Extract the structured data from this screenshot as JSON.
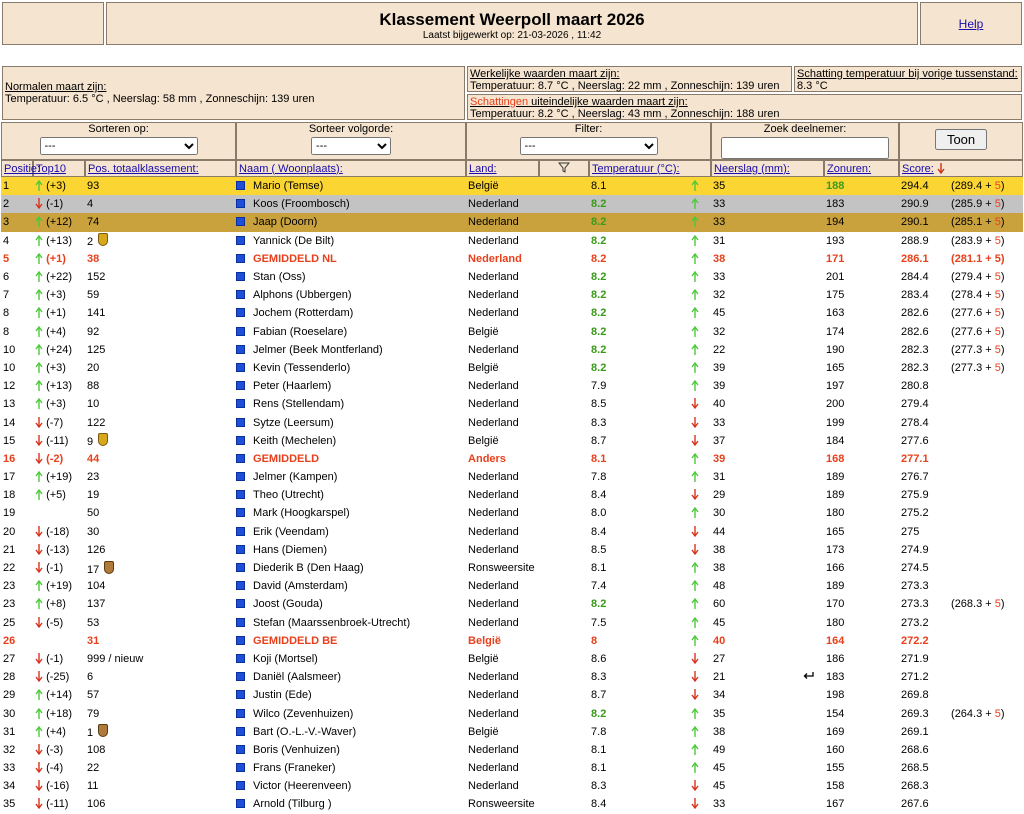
{
  "header": {
    "title": "Klassement Weerpoll maart 2026",
    "subtitle": "Laatst bijgewerkt op: 21-03-2026 , 11:42",
    "help": "Help"
  },
  "info": {
    "normals_label": "Normalen maart zijn:",
    "normals_text": "Temperatuur: 6.5 °C , Neerslag: 58 mm , Zonneschijn: 139 uren",
    "actual_label": "Werkelijke waarden maart zijn:",
    "actual_text": "Temperatuur: 8.7 °C , Neerslag: 22 mm , Zonneschijn: 139 uren",
    "prev_label": "Schatting temperatuur bij vorige tussenstand:",
    "prev_text": "8.3 °C",
    "estimates_link": "Schattingen",
    "estimates_label": " uiteindelijke waarden maart zijn:",
    "estimates_text": "Temperatuur: 8.2 °C , Neerslag: 43 mm , Zonneschijn: 188 uren"
  },
  "controls": {
    "sort_label": "Sorteren op:",
    "sort_value": "---",
    "order_label": "Sorteer volgorde:",
    "order_value": "---",
    "filter_label": "Filter:",
    "filter_value": "---",
    "search_label": "Zoek deelnemer:",
    "button": "Toon"
  },
  "columns": {
    "position": "Positie:",
    "top10": "Top10",
    "total": "Pos. totaalklassement:",
    "name": "Naam ( Woonplaats):",
    "land": "Land:",
    "temp": "Temperatuur (°C):",
    "rain": "Neerslag (mm):",
    "sun": "Zonuren:",
    "score": "Score:"
  },
  "table": {
    "rows": [
      {
        "pos": "1",
        "trend": "up",
        "change": "(+3)",
        "total": "93",
        "name": "Mario (Temse)",
        "land": "België",
        "temp": "8.1",
        "temp_dir": "up",
        "rain": "35",
        "sun": "188",
        "sun_best": true,
        "score": "294.4",
        "est": [
          "(289.4 + ",
          "5",
          ")"
        ],
        "style": "gold"
      },
      {
        "pos": "2",
        "trend": "down",
        "change": "(-1)",
        "total": "4",
        "name": "Koos (Froombosch)",
        "land": "Nederland",
        "temp": "8.2",
        "temp_best": true,
        "temp_dir": "up",
        "rain": "33",
        "sun": "183",
        "score": "290.9",
        "est": [
          "(285.9 + ",
          "5",
          ")"
        ],
        "style": "silver"
      },
      {
        "pos": "3",
        "trend": "up",
        "change": "(+12)",
        "total": "74",
        "name": "Jaap (Doorn)",
        "land": "Nederland",
        "temp": "8.2",
        "temp_best": true,
        "temp_dir": "up",
        "rain": "33",
        "sun": "194",
        "score": "290.1",
        "est": [
          "(285.1 + ",
          "5",
          ")"
        ],
        "style": "bronze"
      },
      {
        "pos": "4",
        "trend": "up",
        "change": "(+13)",
        "total": "2",
        "medal": "gold",
        "name": "Yannick (De Bilt)",
        "land": "Nederland",
        "temp": "8.2",
        "temp_best": true,
        "temp_dir": "up",
        "rain": "31",
        "sun": "193",
        "score": "288.9",
        "est": [
          "(283.9 + ",
          "5",
          ")"
        ]
      },
      {
        "pos": "5",
        "trend": "up",
        "change": "(+1)",
        "total": "38",
        "name": "GEMIDDELD NL",
        "land": "Nederland",
        "temp": "8.2",
        "temp_dir": "up",
        "rain": "38",
        "sun": "171",
        "score": "286.1",
        "est": [
          "(281.1 + ",
          "5",
          ")"
        ],
        "style": "avg"
      },
      {
        "pos": "6",
        "trend": "up",
        "change": "(+22)",
        "total": "152",
        "name": "Stan (Oss)",
        "land": "Nederland",
        "temp": "8.2",
        "temp_best": true,
        "temp_dir": "up",
        "rain": "33",
        "sun": "201",
        "score": "284.4",
        "est": [
          "(279.4 + ",
          "5",
          ")"
        ]
      },
      {
        "pos": "7",
        "trend": "up",
        "change": "(+3)",
        "total": "59",
        "name": "Alphons (Ubbergen)",
        "land": "Nederland",
        "temp": "8.2",
        "temp_best": true,
        "temp_dir": "up",
        "rain": "32",
        "sun": "175",
        "score": "283.4",
        "est": [
          "(278.4 + ",
          "5",
          ")"
        ]
      },
      {
        "pos": "8",
        "trend": "up",
        "change": "(+1)",
        "total": "141",
        "name": "Jochem (Rotterdam)",
        "land": "Nederland",
        "temp": "8.2",
        "temp_best": true,
        "temp_dir": "up",
        "rain": "45",
        "sun": "163",
        "score": "282.6",
        "est": [
          "(277.6 + ",
          "5",
          ")"
        ]
      },
      {
        "pos": "8",
        "trend": "up",
        "change": "(+4)",
        "total": "92",
        "name": "Fabian (Roeselare)",
        "land": "België",
        "temp": "8.2",
        "temp_best": true,
        "temp_dir": "up",
        "rain": "32",
        "sun": "174",
        "score": "282.6",
        "est": [
          "(277.6 + ",
          "5",
          ")"
        ]
      },
      {
        "pos": "10",
        "trend": "up",
        "change": "(+24)",
        "total": "125",
        "name": "Jelmer (Beek Montferland)",
        "land": "Nederland",
        "temp": "8.2",
        "temp_best": true,
        "temp_dir": "up",
        "rain": "22",
        "sun": "190",
        "score": "282.3",
        "est": [
          "(277.3 + ",
          "5",
          ")"
        ]
      },
      {
        "pos": "10",
        "trend": "up",
        "change": "(+3)",
        "total": "20",
        "name": "Kevin (Tessenderlo)",
        "land": "België",
        "temp": "8.2",
        "temp_best": true,
        "temp_dir": "up",
        "rain": "39",
        "sun": "165",
        "score": "282.3",
        "est": [
          "(277.3 + ",
          "5",
          ")"
        ]
      },
      {
        "pos": "12",
        "trend": "up",
        "change": "(+13)",
        "total": "88",
        "name": "Peter (Haarlem)",
        "land": "Nederland",
        "temp": "7.9",
        "temp_dir": "up",
        "rain": "39",
        "sun": "197",
        "score": "280.8"
      },
      {
        "pos": "13",
        "trend": "up",
        "change": "(+3)",
        "total": "10",
        "name": "Rens (Stellendam)",
        "land": "Nederland",
        "temp": "8.5",
        "temp_dir": "down",
        "rain": "40",
        "sun": "200",
        "score": "279.4"
      },
      {
        "pos": "14",
        "trend": "down",
        "change": "(-7)",
        "total": "122",
        "name": "Sytze (Leersum)",
        "land": "Nederland",
        "temp": "8.3",
        "temp_dir": "down",
        "rain": "33",
        "sun": "199",
        "score": "278.4"
      },
      {
        "pos": "15",
        "trend": "down",
        "change": "(-11)",
        "total": "9",
        "medal": "gold",
        "name": "Keith (Mechelen)",
        "land": "België",
        "temp": "8.7",
        "temp_dir": "down",
        "rain": "37",
        "sun": "184",
        "score": "277.6"
      },
      {
        "pos": "16",
        "trend": "down",
        "change": "(-2)",
        "total": "44",
        "name": "GEMIDDELD",
        "land": "Anders",
        "temp": "8.1",
        "temp_dir": "up",
        "rain": "39",
        "sun": "168",
        "score": "277.1",
        "style": "avg"
      },
      {
        "pos": "17",
        "trend": "up",
        "change": "(+19)",
        "total": "23",
        "name": "Jelmer (Kampen)",
        "land": "Nederland",
        "temp": "7.8",
        "temp_dir": "up",
        "rain": "31",
        "sun": "189",
        "score": "276.7"
      },
      {
        "pos": "18",
        "trend": "up",
        "change": "(+5)",
        "total": "19",
        "name": "Theo (Utrecht)",
        "land": "Nederland",
        "temp": "8.4",
        "temp_dir": "down",
        "rain": "29",
        "sun": "189",
        "score": "275.9"
      },
      {
        "pos": "19",
        "total": "50",
        "name": "Mark (Hoogkarspel)",
        "land": "Nederland",
        "temp": "8.0",
        "temp_dir": "up",
        "rain": "30",
        "sun": "180",
        "score": "275.2"
      },
      {
        "pos": "20",
        "trend": "down",
        "change": "(-18)",
        "total": "30",
        "name": "Erik (Veendam)",
        "land": "Nederland",
        "temp": "8.4",
        "temp_dir": "down",
        "rain": "44",
        "sun": "165",
        "score": "275"
      },
      {
        "pos": "21",
        "trend": "down",
        "change": "(-13)",
        "total": "126",
        "name": "Hans (Diemen)",
        "land": "Nederland",
        "temp": "8.5",
        "temp_dir": "down",
        "rain": "38",
        "sun": "173",
        "score": "274.9"
      },
      {
        "pos": "22",
        "trend": "down",
        "change": "(-1)",
        "total": "17",
        "medal": "bronze",
        "name": "Diederik B (Den Haag)",
        "land": "Ronsweersite",
        "temp": "8.1",
        "temp_dir": "up",
        "rain": "38",
        "sun": "166",
        "score": "274.5"
      },
      {
        "pos": "23",
        "trend": "up",
        "change": "(+19)",
        "total": "104",
        "name": "David (Amsterdam)",
        "land": "Nederland",
        "temp": "7.4",
        "temp_dir": "up",
        "rain": "48",
        "sun": "189",
        "score": "273.3"
      },
      {
        "pos": "23",
        "trend": "up",
        "change": "(+8)",
        "total": "137",
        "name": "Joost (Gouda)",
        "land": "Nederland",
        "temp": "8.2",
        "temp_best": true,
        "temp_dir": "up",
        "rain": "60",
        "sun": "170",
        "score": "273.3",
        "est": [
          "(268.3 + ",
          "5",
          ")"
        ]
      },
      {
        "pos": "25",
        "trend": "down",
        "change": "(-5)",
        "total": "53",
        "name": "Stefan (Maarssenbroek-Utrecht)",
        "land": "Nederland",
        "temp": "7.5",
        "temp_dir": "up",
        "rain": "45",
        "sun": "180",
        "score": "273.2"
      },
      {
        "pos": "26",
        "total": "31",
        "name": "GEMIDDELD BE",
        "land": "België",
        "temp": "8",
        "temp_dir": "up",
        "rain": "40",
        "sun": "164",
        "score": "272.2",
        "style": "avg"
      },
      {
        "pos": "27",
        "trend": "down",
        "change": "(-1)",
        "total": "999 / nieuw",
        "name": "Koji (Mortsel)",
        "land": "België",
        "temp": "8.6",
        "temp_dir": "down",
        "rain": "27",
        "sun": "186",
        "score": "271.9"
      },
      {
        "pos": "28",
        "trend": "down",
        "change": "(-25)",
        "total": "6",
        "name": "Daniël (Aalsmeer)",
        "land": "Nederland",
        "temp": "8.3",
        "temp_dir": "down",
        "rain": "21",
        "return_icon": true,
        "sun": "183",
        "score": "271.2"
      },
      {
        "pos": "29",
        "trend": "up",
        "change": "(+14)",
        "total": "57",
        "name": "Justin (Ede)",
        "land": "Nederland",
        "temp": "8.7",
        "temp_dir": "down",
        "rain": "34",
        "sun": "198",
        "score": "269.8"
      },
      {
        "pos": "30",
        "trend": "up",
        "change": "(+18)",
        "total": "79",
        "name": "Wilco (Zevenhuizen)",
        "land": "Nederland",
        "temp": "8.2",
        "temp_best": true,
        "temp_dir": "up",
        "rain": "35",
        "sun": "154",
        "score": "269.3",
        "est": [
          "(264.3 + ",
          "5",
          ")"
        ]
      },
      {
        "pos": "31",
        "trend": "up",
        "change": "(+4)",
        "total": "1",
        "medal": "bronze",
        "name": "Bart (O.-L.-V.-Waver)",
        "land": "België",
        "temp": "7.8",
        "temp_dir": "up",
        "rain": "38",
        "sun": "169",
        "score": "269.1"
      },
      {
        "pos": "32",
        "trend": "down",
        "change": "(-3)",
        "total": "108",
        "name": "Boris (Venhuizen)",
        "land": "Nederland",
        "temp": "8.1",
        "temp_dir": "up",
        "rain": "49",
        "sun": "160",
        "score": "268.6"
      },
      {
        "pos": "33",
        "trend": "down",
        "change": "(-4)",
        "total": "22",
        "name": "Frans (Franeker)",
        "land": "Nederland",
        "temp": "8.1",
        "temp_dir": "up",
        "rain": "45",
        "sun": "155",
        "score": "268.5"
      },
      {
        "pos": "34",
        "trend": "down",
        "change": "(-16)",
        "total": "11",
        "name": "Victor (Heerenveen)",
        "land": "Nederland",
        "temp": "8.3",
        "temp_dir": "down",
        "rain": "45",
        "sun": "158",
        "score": "268.3"
      },
      {
        "pos": "35",
        "trend": "down",
        "change": "(-11)",
        "total": "106",
        "name": "Arnold (Tilburg )",
        "land": "Ronsweersite",
        "temp": "8.4",
        "temp_dir": "down",
        "rain": "33",
        "sun": "167",
        "score": "267.6"
      }
    ]
  }
}
